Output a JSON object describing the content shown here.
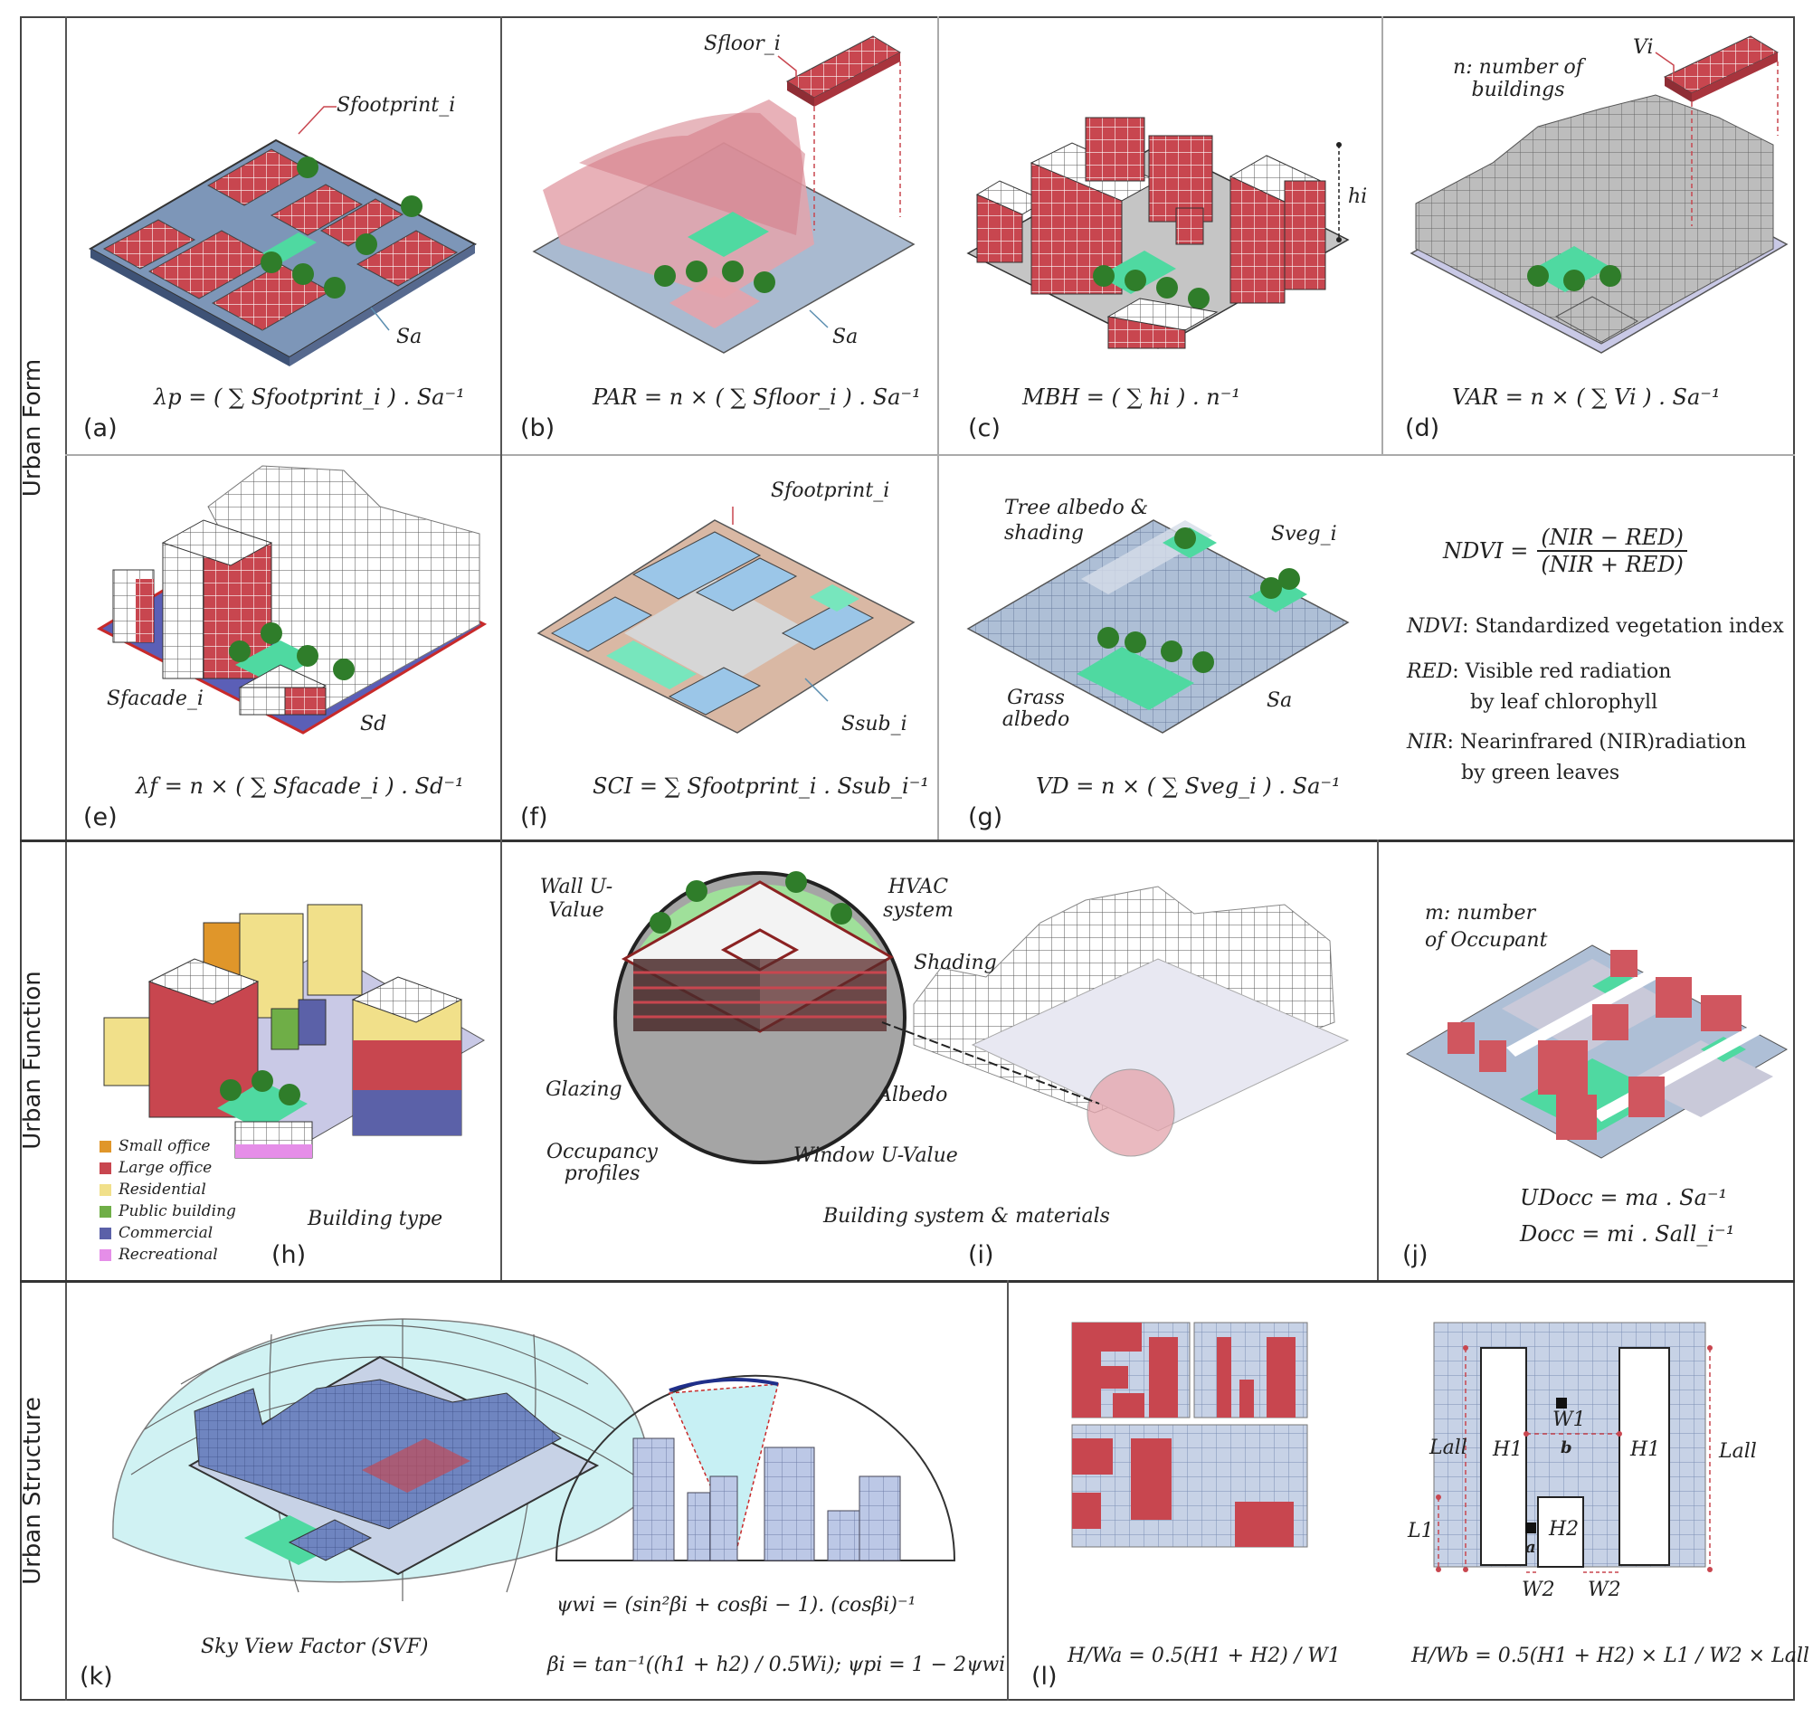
{
  "sections": {
    "form": "Urban Form",
    "function": "Urban Function",
    "structure": "Urban Structure"
  },
  "panels": {
    "a": {
      "label": "(a)",
      "eq": "λp = ( ∑ Sfootprint_i ) . Sa⁻¹",
      "sfoot": "Sfootprint_i",
      "sa": "Sa"
    },
    "b": {
      "label": "(b)",
      "eq": "PAR = n × ( ∑ Sfloor_i ) . Sa⁻¹",
      "sfloor": "Sfloor_i",
      "sa": "Sa"
    },
    "c": {
      "label": "(c)",
      "eq": "MBH = ( ∑ hi ) . n⁻¹",
      "h": "hi"
    },
    "d": {
      "label": "(d)",
      "eq": "VAR = n × ( ∑ Vi ) . Sa⁻¹",
      "n_note": "n: number of buildings",
      "v": "Vi"
    },
    "e": {
      "label": "(e)",
      "eq": "λf = n × ( ∑ Sfacade_i ) . Sd⁻¹",
      "sfacade": "Sfacade_i",
      "sd": "Sd"
    },
    "f": {
      "label": "(f)",
      "eq": "SCI = ∑ Sfootprint_i . Ssub_i⁻¹",
      "sfoot": "Sfootprint_i",
      "ssub": "Ssub_i"
    },
    "g": {
      "label": "(g)",
      "eq": "VD = n × ( ∑ Sveg_i ) . Sa⁻¹",
      "tree": "Tree albedo & shading",
      "grass": "Grass albedo",
      "sveg": "Sveg_i",
      "sa": "Sa"
    },
    "ndvi": {
      "formula_lhs": "NDVI =",
      "num": "(NIR − RED)",
      "den": "(NIR + RED)",
      "def1_term": "NDVI",
      "def1": ": Standardized vegetation index",
      "def2_term": "RED",
      "def2a": ": Visible red radiation",
      "def2b": "by leaf chlorophyll",
      "def3_term": "NIR",
      "def3a": ": Nearinfrared (NIR)radiation",
      "def3b": "by green leaves"
    },
    "h": {
      "label": "(h)",
      "caption": "Building type",
      "legend": [
        {
          "name": "Small office",
          "color": "#e0962a"
        },
        {
          "name": "Large office",
          "color": "#c8464f"
        },
        {
          "name": "Residential",
          "color": "#f1e08a"
        },
        {
          "name": "Public building",
          "color": "#6fae47"
        },
        {
          "name": "Commercial",
          "color": "#5b61a8"
        },
        {
          "name": "Recreational",
          "color": "#e58ee8"
        }
      ]
    },
    "i": {
      "label": "(i)",
      "caption": "Building system & materials",
      "wall": "Wall U-Value",
      "hvac": "HVAC system",
      "shading": "Shading",
      "glazing": "Glazing",
      "albedo": "Albedo",
      "occupancy": "Occupancy profiles",
      "window": "Window U-Value"
    },
    "j": {
      "label": "(j)",
      "m_note": "m: number of Occupant",
      "eq1": "UDocc = ma . Sa⁻¹",
      "eq2": "Docc = mi . Sall_i⁻¹"
    },
    "k": {
      "label": "(k)",
      "caption": "Sky View Factor (SVF)",
      "eq1": "ψwi = (sin²βi + cosβi − 1). (cosβi)⁻¹",
      "eq2": "βi = tan⁻¹((h1 + h2) / 0.5Wi); ψpi = 1 − 2ψwi"
    },
    "l": {
      "label": "(l)",
      "eq_a": "H/Wa = 0.5(H1 + H2) / W1",
      "eq_b": "H/Wb = 0.5(H1 + H2) × L1 / W2 × Lall",
      "lall": "Lall",
      "h1": "H1",
      "h2": "H2",
      "w1": "W1",
      "w2": "W2",
      "l1": "L1",
      "a": "a",
      "b": "b"
    }
  },
  "colors": {
    "building_red": "#c8464f",
    "grid_blue": "#9fb4d0",
    "green": "#4fd9a1",
    "tree": "#2f7d2a",
    "building_blue": "#6f85c0",
    "gray": "#b9b9b9"
  }
}
